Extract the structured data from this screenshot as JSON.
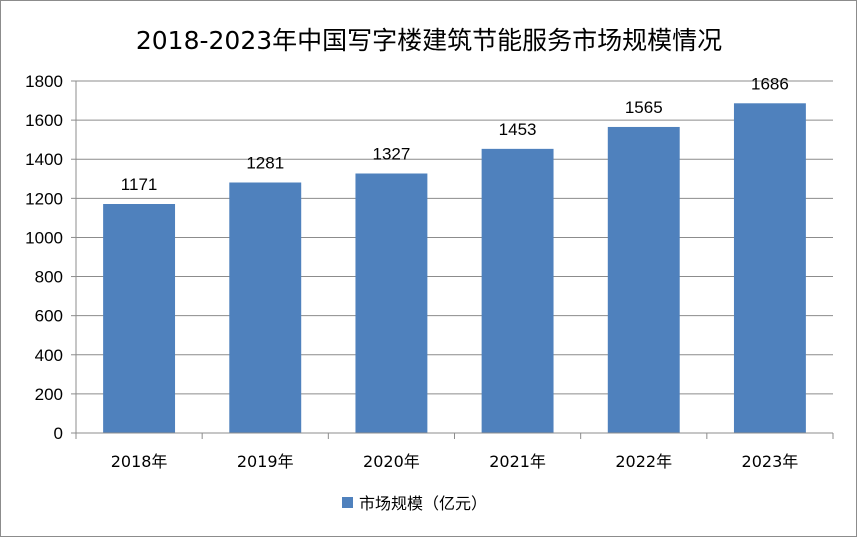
{
  "chart_data": {
    "type": "bar",
    "title": "2018-2023年中国写字楼建筑节能服务市场规模情况",
    "categories": [
      "2018年",
      "2019年",
      "2020年",
      "2021年",
      "2022年",
      "2023年"
    ],
    "series": [
      {
        "name": "市场规模（亿元）",
        "values": [
          1171,
          1281,
          1327,
          1453,
          1565,
          1686
        ],
        "color": "#4f81bd"
      }
    ],
    "xlabel": "",
    "ylabel": "",
    "ylim": [
      0,
      1800
    ],
    "yticks": [
      0,
      200,
      400,
      600,
      800,
      1000,
      1200,
      1400,
      1600,
      1800
    ],
    "grid": true,
    "legend_position": "bottom",
    "data_labels": true
  }
}
